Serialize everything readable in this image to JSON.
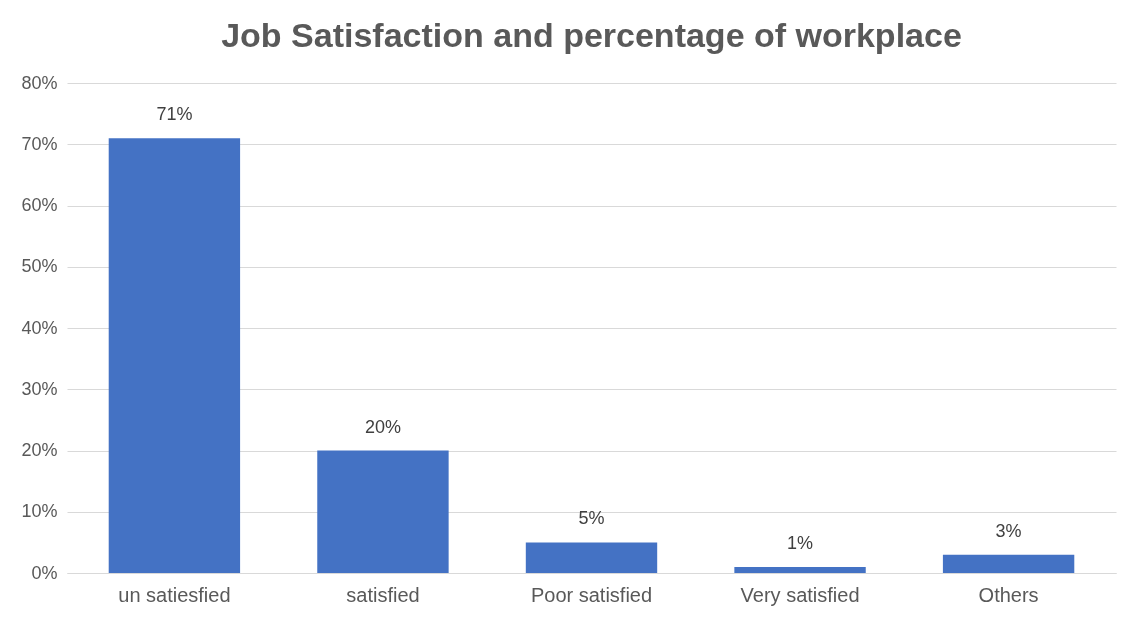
{
  "chart_data": {
    "type": "bar",
    "title": "Job Satisfaction and percentage of workplace",
    "categories": [
      "un satiesfied",
      "satisfied",
      "Poor satisfied",
      "Very satisfied",
      "Others"
    ],
    "values": [
      71,
      20,
      5,
      1,
      3
    ],
    "value_labels": [
      "71%",
      "20%",
      "5%",
      "1%",
      "3%"
    ],
    "color": "#4472c4",
    "ylim": [
      0,
      80
    ],
    "yticks": [
      {
        "value": 0,
        "label": "0%"
      },
      {
        "value": 10,
        "label": "10%"
      },
      {
        "value": 20,
        "label": "20%"
      },
      {
        "value": 30,
        "label": "30%"
      },
      {
        "value": 40,
        "label": "40%"
      },
      {
        "value": 50,
        "label": "50%"
      },
      {
        "value": 60,
        "label": "60%"
      },
      {
        "value": 70,
        "label": "70%"
      },
      {
        "value": 80,
        "label": "80%"
      }
    ],
    "grid": "y"
  }
}
